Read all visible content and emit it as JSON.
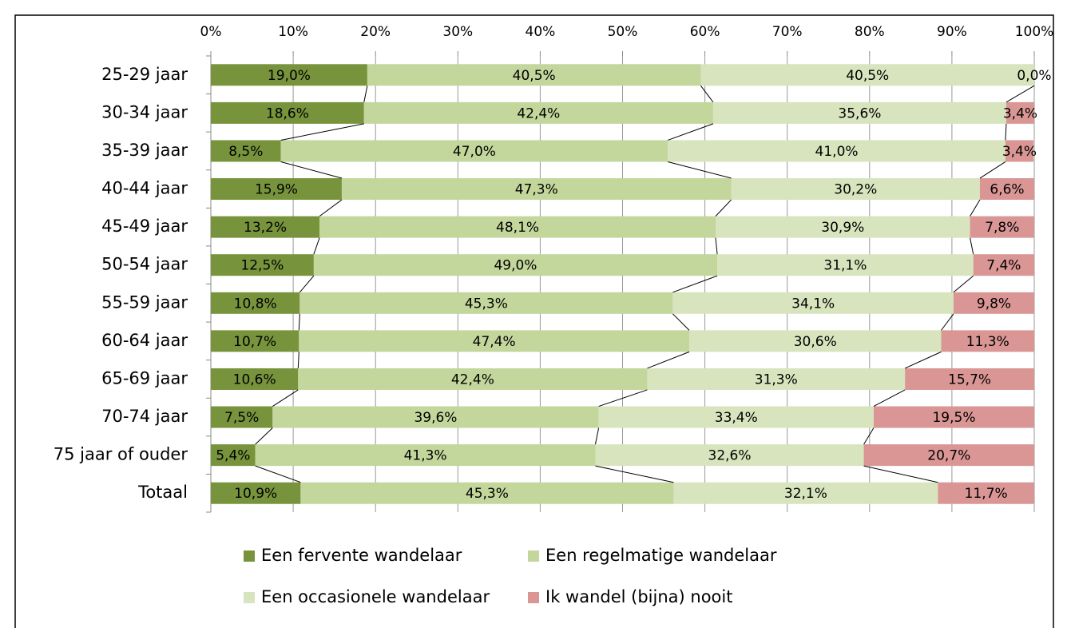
{
  "chart_data": {
    "type": "stacked_barh",
    "categories": [
      "25-29 jaar",
      "30-34 jaar",
      "35-39 jaar",
      "40-44 jaar",
      "45-49 jaar",
      "50-54 jaar",
      "55-59 jaar",
      "60-64 jaar",
      "65-69 jaar",
      "70-74 jaar",
      "75 jaar of ouder",
      "Totaal"
    ],
    "series": [
      {
        "name": "Een fervente wandelaar",
        "color": "#77933c",
        "values": [
          19.0,
          18.6,
          8.5,
          15.9,
          13.2,
          12.5,
          10.8,
          10.7,
          10.6,
          7.5,
          5.4,
          10.9
        ],
        "value_labels": [
          "19,0%",
          "18,6%",
          "8,5%",
          "15,9%",
          "13,2%",
          "12,5%",
          "10,8%",
          "10,7%",
          "10,6%",
          "7,5%",
          "5,4%",
          "10,9%"
        ]
      },
      {
        "name": "Een regelmatige wandelaar",
        "color": "#c3d69b",
        "values": [
          40.5,
          42.4,
          47.0,
          47.3,
          48.1,
          49.0,
          45.3,
          47.4,
          42.4,
          39.6,
          41.3,
          45.3
        ],
        "value_labels": [
          "40,5%",
          "42,4%",
          "47,0%",
          "47,3%",
          "48,1%",
          "49,0%",
          "45,3%",
          "47,4%",
          "42,4%",
          "39,6%",
          "41,3%",
          "45,3%"
        ]
      },
      {
        "name": "Een occasionele wandelaar",
        "color": "#d7e4bd",
        "values": [
          40.5,
          35.6,
          41.0,
          30.2,
          30.9,
          31.1,
          34.1,
          30.6,
          31.3,
          33.4,
          32.6,
          32.1
        ],
        "value_labels": [
          "40,5%",
          "35,6%",
          "41,0%",
          "30,2%",
          "30,9%",
          "31,1%",
          "34,1%",
          "30,6%",
          "31,3%",
          "33,4%",
          "32,6%",
          "32,1%"
        ]
      },
      {
        "name": "Ik wandel (bijna) nooit",
        "color": "#d99694",
        "values": [
          0.0,
          3.4,
          3.4,
          6.6,
          7.8,
          7.4,
          9.8,
          11.3,
          15.7,
          19.5,
          20.7,
          11.7
        ],
        "value_labels": [
          "0,0%",
          "3,4%",
          "3,4%",
          "6,6%",
          "7,8%",
          "7,4%",
          "9,8%",
          "11,3%",
          "15,7%",
          "19,5%",
          "20,7%",
          "11,7%"
        ]
      }
    ],
    "xlim": [
      0,
      100
    ],
    "xticks": [
      {
        "value": 0,
        "label": "0%"
      },
      {
        "value": 10,
        "label": "10%"
      },
      {
        "value": 20,
        "label": "20%"
      },
      {
        "value": 30,
        "label": "30%"
      },
      {
        "value": 40,
        "label": "40%"
      },
      {
        "value": 50,
        "label": "50%"
      },
      {
        "value": 60,
        "label": "60%"
      },
      {
        "value": 70,
        "label": "70%"
      },
      {
        "value": 80,
        "label": "80%"
      },
      {
        "value": 90,
        "label": "90%"
      },
      {
        "value": 100,
        "label": "100%"
      }
    ],
    "grid": true,
    "legend": "bottom"
  }
}
